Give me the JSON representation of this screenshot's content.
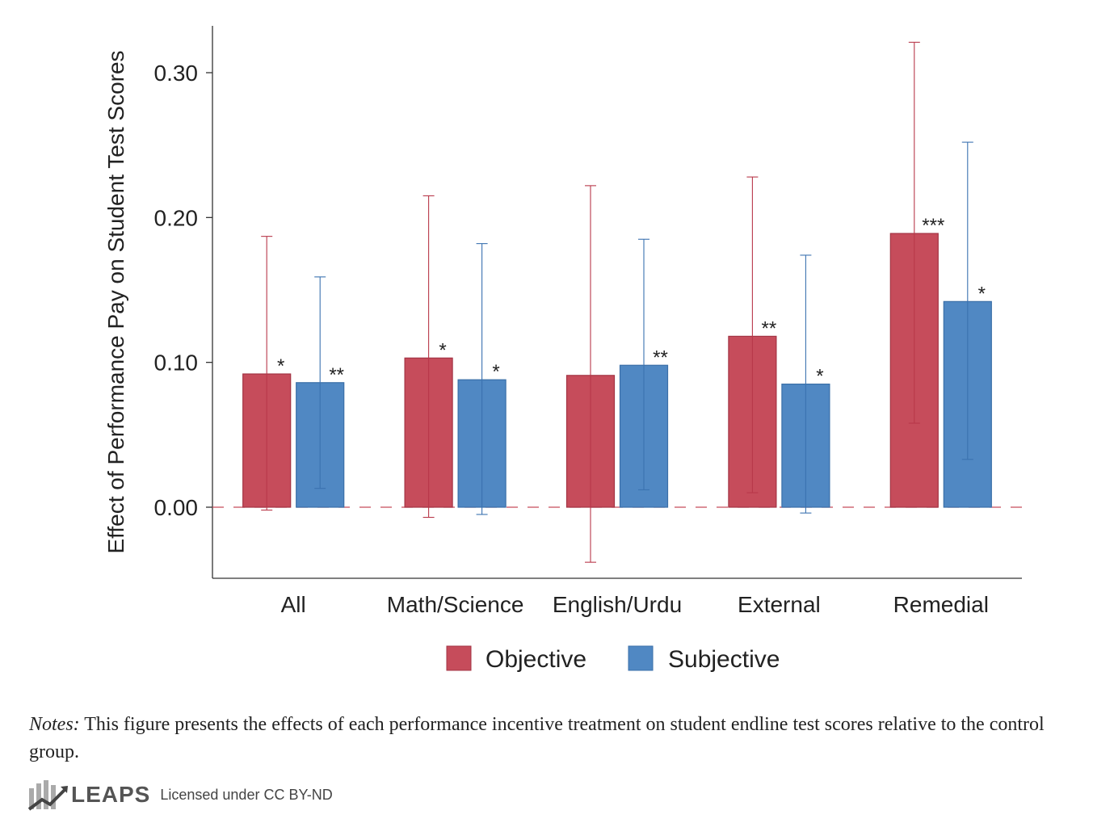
{
  "chart_data": {
    "type": "bar",
    "title": "",
    "ylabel": "Effect of Performance Pay on Student Test Scores",
    "xlabel": "",
    "ylim": [
      -0.048,
      0.332
    ],
    "yticks": [
      0.0,
      0.1,
      0.2,
      0.3
    ],
    "ytick_labels": [
      "0.00",
      "0.10",
      "0.20",
      "0.30"
    ],
    "categories": [
      "All",
      "Math/Science",
      "English/Urdu",
      "External",
      "Remedial"
    ],
    "series": [
      {
        "name": "Objective",
        "color": "#c64c5b",
        "values": [
          0.092,
          0.103,
          0.091,
          0.118,
          0.189
        ],
        "ci_low": [
          -0.002,
          -0.007,
          -0.038,
          0.01,
          0.058
        ],
        "ci_high": [
          0.187,
          0.215,
          0.222,
          0.228,
          0.321
        ],
        "stars": [
          "*",
          "*",
          "",
          "**",
          "***"
        ]
      },
      {
        "name": "Subjective",
        "color": "#5088c3",
        "values": [
          0.086,
          0.088,
          0.098,
          0.085,
          0.142
        ],
        "ci_low": [
          0.013,
          -0.005,
          0.012,
          -0.004,
          0.033
        ],
        "ci_high": [
          0.159,
          0.182,
          0.185,
          0.174,
          0.252
        ],
        "stars": [
          "**",
          "*",
          "**",
          "*",
          "*"
        ]
      }
    ],
    "reference_line": 0.0,
    "grid": false,
    "legend_position": "bottom"
  },
  "notes": {
    "lead": "Notes:",
    "text": "This figure presents the effects of each performance incentive treatment on student endline test scores relative to the control group."
  },
  "footer": {
    "brand": "LEAPS",
    "license": "Licensed under CC BY-ND"
  }
}
